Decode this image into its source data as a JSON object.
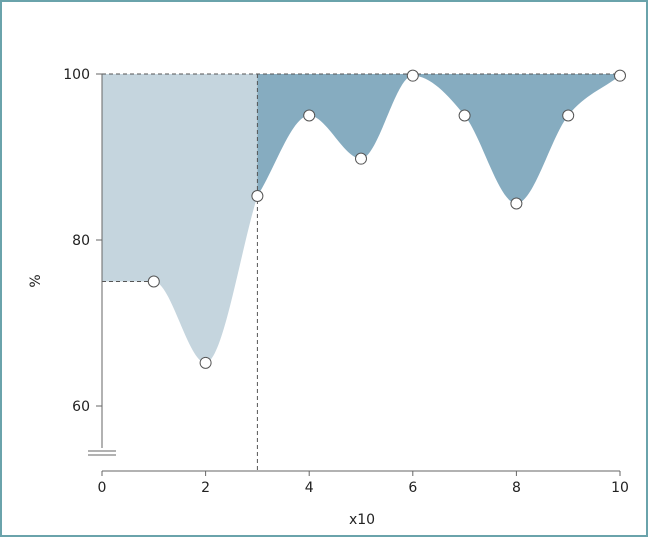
{
  "chart_data": {
    "type": "area",
    "title": "",
    "xlabel": "x10",
    "ylabel": "%",
    "xlim": [
      0,
      10
    ],
    "ylim": [
      55,
      100
    ],
    "xticks": [
      "0",
      "2",
      "4",
      "6",
      "8",
      "10"
    ],
    "yticks": [
      "60",
      "80",
      "100"
    ],
    "y_axis_break": true,
    "grid": false,
    "split_x": 3,
    "points": [
      {
        "x": 0,
        "y": 75
      },
      {
        "x": 1,
        "y": 75
      },
      {
        "x": 2,
        "y": 65.2
      },
      {
        "x": 3,
        "y": 85.3
      },
      {
        "x": 4,
        "y": 95
      },
      {
        "x": 5,
        "y": 89.8
      },
      {
        "x": 6,
        "y": 99.8
      },
      {
        "x": 7,
        "y": 95
      },
      {
        "x": 8,
        "y": 84.4
      },
      {
        "x": 9,
        "y": 95
      },
      {
        "x": 10,
        "y": 99.8
      }
    ],
    "colors": {
      "fill_left": "#c5d5de",
      "fill_right": "#86acc0",
      "axis": "#666666",
      "dash": "#555555",
      "marker_fill": "#ffffff",
      "marker_stroke": "#555555",
      "frame": "#6aa3ab"
    }
  }
}
